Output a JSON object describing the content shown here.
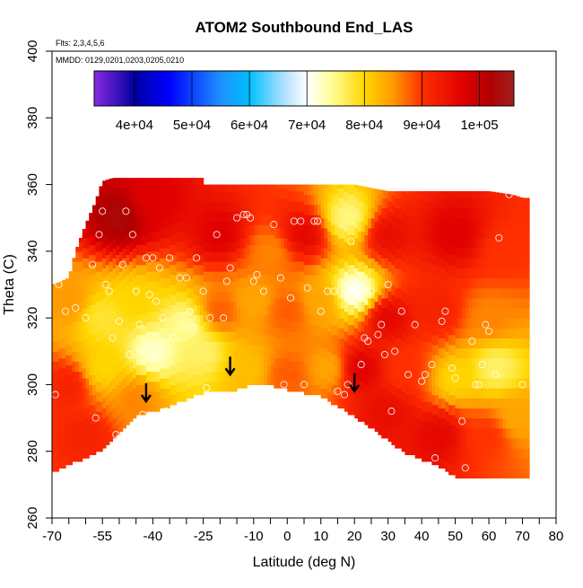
{
  "chart_data": {
    "type": "heatmap",
    "title": "ATOM2 Southbound End_LAS",
    "annotations": [
      "Flts: 2,3,4,5,6",
      "MMDD: 0129,0201,0203,0205,0210"
    ],
    "xlabel": "Latitude (deg N)",
    "ylabel": "Theta (C)",
    "xlim": [
      -70,
      80
    ],
    "ylim": [
      260,
      400
    ],
    "x_ticks": [
      -70,
      -55,
      -40,
      -25,
      -10,
      0,
      10,
      20,
      30,
      40,
      50,
      60,
      70,
      80
    ],
    "y_ticks": [
      260,
      280,
      300,
      320,
      340,
      360,
      380,
      400
    ],
    "colorbar": {
      "tick_labels": [
        "4e+04",
        "5e+04",
        "6e+04",
        "7e+04",
        "8e+04",
        "9e+04",
        "1e+05"
      ],
      "tick_values": [
        40000,
        50000,
        60000,
        70000,
        80000,
        90000,
        100000
      ],
      "range": [
        33000,
        106000
      ],
      "stops": [
        {
          "value": 33000,
          "color": "#8a2be2"
        },
        {
          "value": 40000,
          "color": "#0000a0"
        },
        {
          "value": 46000,
          "color": "#0000ff"
        },
        {
          "value": 55000,
          "color": "#1e90ff"
        },
        {
          "value": 60000,
          "color": "#00bfff"
        },
        {
          "value": 66000,
          "color": "#b0e0ff"
        },
        {
          "value": 70000,
          "color": "#ffffff"
        },
        {
          "value": 74000,
          "color": "#ffffa0"
        },
        {
          "value": 80000,
          "color": "#ffd700"
        },
        {
          "value": 85000,
          "color": "#ff9a00"
        },
        {
          "value": 90000,
          "color": "#ff3000"
        },
        {
          "value": 97000,
          "color": "#e00000"
        },
        {
          "value": 102000,
          "color": "#b00000"
        },
        {
          "value": 106000,
          "color": "#a02020"
        }
      ]
    },
    "arrows": [
      {
        "lat": -42,
        "theta": 295
      },
      {
        "lat": -17,
        "theta": 303
      },
      {
        "lat": 20,
        "theta": 298
      }
    ],
    "data_extent": {
      "lat_range": [
        -70,
        72
      ],
      "top_boundary": [
        [
          -70,
          330
        ],
        [
          -65,
          332
        ],
        [
          -63,
          340
        ],
        [
          -60,
          348
        ],
        [
          -57,
          355
        ],
        [
          -55,
          361
        ],
        [
          -52,
          362
        ],
        [
          -25,
          362
        ],
        [
          -25,
          360
        ],
        [
          20,
          360
        ],
        [
          30,
          358
        ],
        [
          60,
          358
        ],
        [
          67,
          357
        ],
        [
          70,
          356
        ]
      ],
      "bottom_boundary": [
        [
          -70,
          274
        ],
        [
          -55,
          281
        ],
        [
          -45,
          291
        ],
        [
          -35,
          294
        ],
        [
          -25,
          298
        ],
        [
          -15,
          299
        ],
        [
          -8,
          301
        ],
        [
          0,
          299
        ],
        [
          10,
          297
        ],
        [
          20,
          291
        ],
        [
          27,
          286
        ],
        [
          35,
          280
        ],
        [
          45,
          276
        ],
        [
          50,
          273
        ],
        [
          70,
          272
        ]
      ]
    },
    "field_samples": [
      {
        "lat": -50,
        "theta": 350,
        "value": 103000
      },
      {
        "lat": -40,
        "theta": 355,
        "value": 97000
      },
      {
        "lat": -20,
        "theta": 345,
        "value": 97000
      },
      {
        "lat": -5,
        "theta": 340,
        "value": 86000
      },
      {
        "lat": 5,
        "theta": 345,
        "value": 96000
      },
      {
        "lat": 18,
        "theta": 350,
        "value": 75000
      },
      {
        "lat": 30,
        "theta": 345,
        "value": 95000
      },
      {
        "lat": 50,
        "theta": 345,
        "value": 97000
      },
      {
        "lat": 65,
        "theta": 340,
        "value": 90000
      },
      {
        "lat": -65,
        "theta": 325,
        "value": 85000
      },
      {
        "lat": -55,
        "theta": 320,
        "value": 78000
      },
      {
        "lat": -45,
        "theta": 325,
        "value": 80000
      },
      {
        "lat": -30,
        "theta": 318,
        "value": 74000
      },
      {
        "lat": -20,
        "theta": 322,
        "value": 88000
      },
      {
        "lat": -10,
        "theta": 325,
        "value": 84000
      },
      {
        "lat": 0,
        "theta": 322,
        "value": 88000
      },
      {
        "lat": 10,
        "theta": 325,
        "value": 84000
      },
      {
        "lat": 20,
        "theta": 328,
        "value": 70000
      },
      {
        "lat": 30,
        "theta": 320,
        "value": 96000
      },
      {
        "lat": 45,
        "theta": 322,
        "value": 92000
      },
      {
        "lat": 60,
        "theta": 320,
        "value": 86000
      },
      {
        "lat": -65,
        "theta": 300,
        "value": 92000
      },
      {
        "lat": -55,
        "theta": 305,
        "value": 80000
      },
      {
        "lat": -40,
        "theta": 310,
        "value": 72000
      },
      {
        "lat": -25,
        "theta": 310,
        "value": 76000
      },
      {
        "lat": -12,
        "theta": 305,
        "value": 82000
      },
      {
        "lat": 0,
        "theta": 303,
        "value": 88000
      },
      {
        "lat": 12,
        "theta": 305,
        "value": 84000
      },
      {
        "lat": 22,
        "theta": 305,
        "value": 97000
      },
      {
        "lat": 35,
        "theta": 305,
        "value": 90000
      },
      {
        "lat": 50,
        "theta": 302,
        "value": 80000
      },
      {
        "lat": 62,
        "theta": 305,
        "value": 76000
      },
      {
        "lat": -60,
        "theta": 285,
        "value": 92000
      },
      {
        "lat": -45,
        "theta": 296,
        "value": 86000
      },
      {
        "lat": 30,
        "theta": 292,
        "value": 95000
      },
      {
        "lat": 45,
        "theta": 285,
        "value": 96000
      },
      {
        "lat": 60,
        "theta": 285,
        "value": 90000
      },
      {
        "lat": 68,
        "theta": 290,
        "value": 84000
      }
    ],
    "observation_points": [
      [
        -69,
        297
      ],
      [
        -68,
        330
      ],
      [
        -67,
        336
      ],
      [
        -66,
        322
      ],
      [
        -63,
        323
      ],
      [
        -60,
        320
      ],
      [
        -58,
        336
      ],
      [
        -57,
        290
      ],
      [
        -56,
        345
      ],
      [
        -55,
        352
      ],
      [
        -54,
        330
      ],
      [
        -53,
        328
      ],
      [
        -52,
        314
      ],
      [
        -51,
        285
      ],
      [
        -50,
        319
      ],
      [
        -49,
        336
      ],
      [
        -48,
        352
      ],
      [
        -47,
        309
      ],
      [
        -46,
        345
      ],
      [
        -45,
        328
      ],
      [
        -44,
        318
      ],
      [
        -43,
        291
      ],
      [
        -42,
        338
      ],
      [
        -41,
        327
      ],
      [
        -40,
        338
      ],
      [
        -39,
        325
      ],
      [
        -38,
        335
      ],
      [
        -37,
        320
      ],
      [
        -36,
        292
      ],
      [
        -35,
        338
      ],
      [
        -34,
        314
      ],
      [
        -32,
        332
      ],
      [
        -30,
        332
      ],
      [
        -29,
        322
      ],
      [
        -28,
        317
      ],
      [
        -27,
        338
      ],
      [
        -25,
        328
      ],
      [
        -24,
        299
      ],
      [
        -23,
        320
      ],
      [
        -21,
        345
      ],
      [
        -19,
        320
      ],
      [
        -18,
        331
      ],
      [
        -17,
        335
      ],
      [
        -15,
        350
      ],
      [
        -13,
        351
      ],
      [
        -12,
        351
      ],
      [
        -11,
        350
      ],
      [
        -10,
        331
      ],
      [
        -9,
        333
      ],
      [
        -7,
        328
      ],
      [
        -4,
        348
      ],
      [
        -2,
        332
      ],
      [
        -1,
        300
      ],
      [
        1,
        326
      ],
      [
        2,
        349
      ],
      [
        4,
        349
      ],
      [
        5,
        300
      ],
      [
        6,
        329
      ],
      [
        8,
        349
      ],
      [
        9,
        349
      ],
      [
        10,
        322
      ],
      [
        12,
        328
      ],
      [
        14,
        328
      ],
      [
        15,
        298
      ],
      [
        17,
        297
      ],
      [
        18,
        300
      ],
      [
        19,
        343
      ],
      [
        20,
        329
      ],
      [
        22,
        306
      ],
      [
        23,
        314
      ],
      [
        24,
        313
      ],
      [
        25,
        328
      ],
      [
        27,
        315
      ],
      [
        28,
        318
      ],
      [
        29,
        309
      ],
      [
        30,
        330
      ],
      [
        31,
        292
      ],
      [
        32,
        310
      ],
      [
        34,
        322
      ],
      [
        36,
        303
      ],
      [
        38,
        318
      ],
      [
        40,
        301
      ],
      [
        41,
        303
      ],
      [
        43,
        306
      ],
      [
        44,
        278
      ],
      [
        46,
        319
      ],
      [
        47,
        322
      ],
      [
        49,
        305
      ],
      [
        50,
        302
      ],
      [
        52,
        289
      ],
      [
        53,
        275
      ],
      [
        55,
        313
      ],
      [
        56,
        300
      ],
      [
        57,
        300
      ],
      [
        58,
        306
      ],
      [
        59,
        318
      ],
      [
        60,
        316
      ],
      [
        62,
        303
      ],
      [
        63,
        344
      ],
      [
        66,
        357
      ],
      [
        70,
        300
      ]
    ]
  }
}
